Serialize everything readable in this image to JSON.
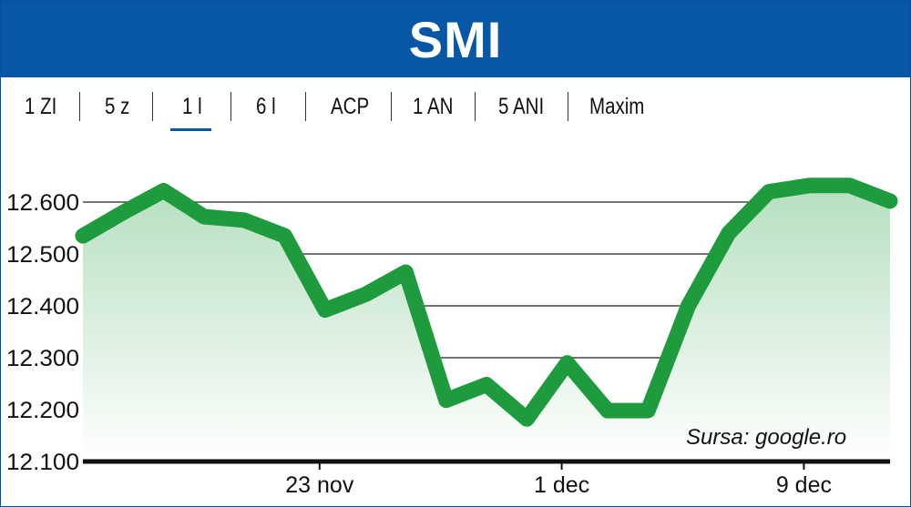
{
  "header": {
    "title": "SMI"
  },
  "ranges": [
    {
      "label": "1 ZI",
      "active": false
    },
    {
      "label": "5 z",
      "active": false
    },
    {
      "label": "1 l",
      "active": true
    },
    {
      "label": "6 l",
      "active": false
    },
    {
      "label": "ACP",
      "active": false
    },
    {
      "label": "1 AN",
      "active": false
    },
    {
      "label": "5 ANI",
      "active": false
    },
    {
      "label": "Maxim",
      "active": false
    }
  ],
  "source": "Sursa: google.ro",
  "colors": {
    "header_bg": "#0757a6",
    "line": "#1e9b3c",
    "fill": "#c4e6cb",
    "grid": "#222222",
    "axis": "#111111"
  },
  "chart_data": {
    "type": "area",
    "x_tick_labels": [
      "23 nov",
      "1 dec",
      "9 dec"
    ],
    "y_tick_labels": [
      "12.600",
      "12.500",
      "12.400",
      "12.300",
      "12.200",
      "12.100"
    ],
    "y_ticks": [
      12600,
      12500,
      12400,
      12300,
      12200,
      12100
    ],
    "ylim": [
      12100,
      12600
    ],
    "grid": true,
    "series": [
      {
        "values": [
          12535,
          12580,
          12622,
          12572,
          12565,
          12535,
          12392,
          12422,
          12465,
          12218,
          12248,
          12182,
          12290,
          12198,
          12198,
          12400,
          12540,
          12620,
          12632,
          12632,
          12602
        ]
      }
    ]
  }
}
